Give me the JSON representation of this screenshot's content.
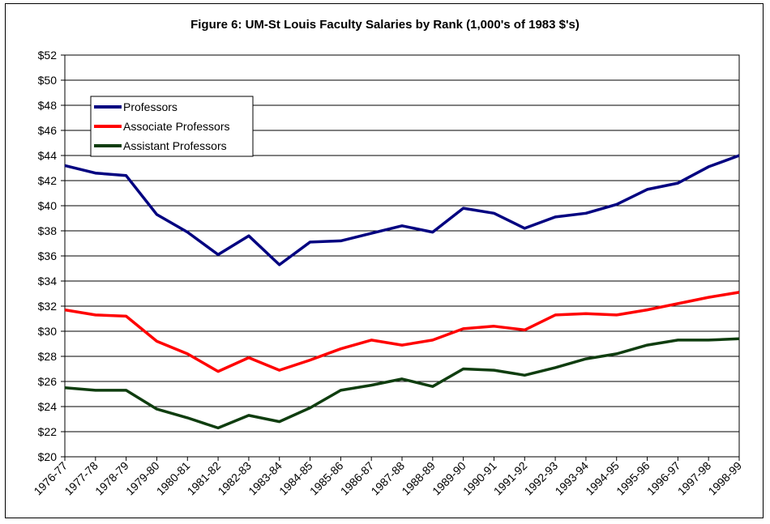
{
  "chart_data": {
    "type": "line",
    "title": "Figure 6: UM-St Louis Faculty Salaries by Rank (1,000's of 1983 $'s)",
    "categories": [
      "1976-77",
      "1977-78",
      "1978-79",
      "1979-80",
      "1980-81",
      "1981-82",
      "1982-83",
      "1983-84",
      "1984-85",
      "1985-86",
      "1986-87",
      "1987-88",
      "1988-89",
      "1989-90",
      "1990-91",
      "1991-92",
      "1992-93",
      "1993-94",
      "1994-95",
      "1995-96",
      "1996-97",
      "1997-98",
      "1998-99"
    ],
    "series": [
      {
        "name": "Professors",
        "color": "#000080",
        "values": [
          43.2,
          42.6,
          42.4,
          39.3,
          37.9,
          36.1,
          37.6,
          35.3,
          37.1,
          37.2,
          37.8,
          38.4,
          37.9,
          39.8,
          39.4,
          38.2,
          39.1,
          39.4,
          40.1,
          41.3,
          41.8,
          43.1,
          44.0
        ]
      },
      {
        "name": "Associate Professors",
        "color": "#ff0000",
        "values": [
          31.7,
          31.3,
          31.2,
          29.2,
          28.2,
          26.8,
          27.9,
          26.9,
          27.7,
          28.6,
          29.3,
          28.9,
          29.3,
          30.2,
          30.4,
          30.1,
          31.3,
          31.4,
          31.3,
          31.7,
          32.2,
          32.7,
          33.1
        ]
      },
      {
        "name": "Assistant Professors",
        "color": "#0f3d0f",
        "values": [
          25.5,
          25.3,
          25.3,
          23.8,
          23.1,
          22.3,
          23.3,
          22.8,
          23.9,
          25.3,
          25.7,
          26.2,
          25.6,
          27.0,
          26.9,
          26.5,
          27.1,
          27.8,
          28.2,
          28.9,
          29.3,
          29.3,
          29.4
        ]
      }
    ],
    "ylim": [
      20,
      52
    ],
    "ytick_step": 2,
    "ytick_prefix": "$",
    "grid": true,
    "legend_position": "top-left"
  }
}
